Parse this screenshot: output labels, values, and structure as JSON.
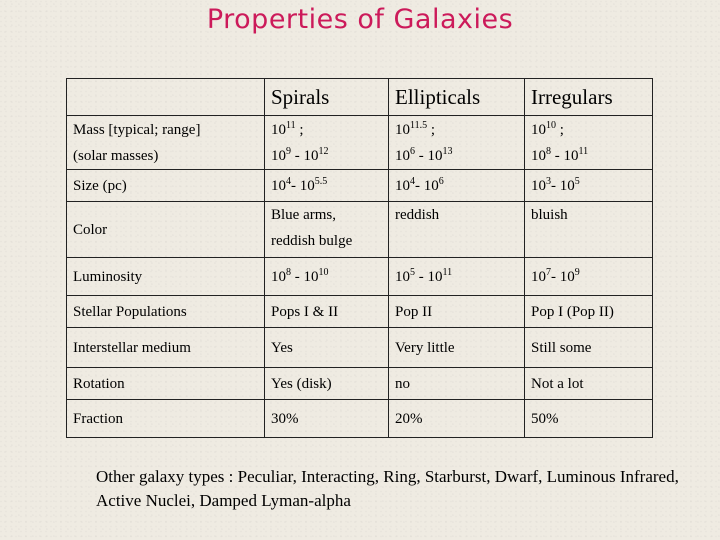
{
  "title": "Properties of Galaxies",
  "table": {
    "headers": [
      "",
      "Spirals",
      "Ellipticals",
      "Irregulars"
    ],
    "rows": [
      {
        "label": [
          "Mass [typical; range]",
          "(solar masses)"
        ],
        "cells": [
          [
            "10|11| ;",
            "10|9| - 10|12"
          ],
          [
            "10|11.5| ;",
            "10|6| - 10|13"
          ],
          [
            "10|10| ;",
            "10|8| - 10|11"
          ]
        ]
      },
      {
        "label": [
          "Size (pc)"
        ],
        "cells": [
          [
            "10|4|- 10|5.5"
          ],
          [
            "10|4|- 10|6"
          ],
          [
            "10|3|- 10|5"
          ]
        ]
      },
      {
        "label": [
          "Color"
        ],
        "cells": [
          [
            "Blue arms,",
            "reddish bulge"
          ],
          [
            "reddish"
          ],
          [
            "bluish"
          ]
        ]
      },
      {
        "label": [
          "Luminosity"
        ],
        "cells": [
          [
            "10|8| - 10|10"
          ],
          [
            "10|5| - 10|11"
          ],
          [
            "10|7|- 10|9"
          ]
        ]
      },
      {
        "label": [
          "Stellar Populations"
        ],
        "cells": [
          [
            "Pops I & II"
          ],
          [
            "Pop II"
          ],
          [
            "Pop I (Pop II)"
          ]
        ]
      },
      {
        "label": [
          "Interstellar medium"
        ],
        "cells": [
          [
            "Yes"
          ],
          [
            "Very little"
          ],
          [
            "Still some"
          ]
        ]
      },
      {
        "label": [
          "Rotation"
        ],
        "cells": [
          [
            "Yes (disk)"
          ],
          [
            "no"
          ],
          [
            "Not a lot"
          ]
        ]
      },
      {
        "label": [
          "Fraction"
        ],
        "cells": [
          [
            "30%"
          ],
          [
            "20%"
          ],
          [
            "50%"
          ]
        ]
      }
    ]
  },
  "note": "Other galaxy types : Peculiar, Interacting, Ring, Starburst, Dwarf, Luminous Infrared, Active Nuclei, Damped Lyman-alpha"
}
